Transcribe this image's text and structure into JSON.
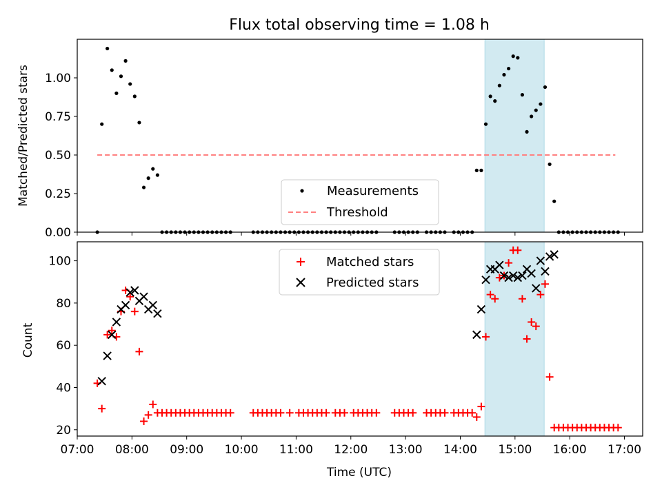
{
  "chart_data": [
    {
      "type": "scatter",
      "title": "Flux total observing time = 1.08 h",
      "xlabel": "",
      "ylabel": "Matched/Predicted stars",
      "xlim": [
        "07:00",
        "17:20"
      ],
      "ylim": [
        0,
        1.25
      ],
      "yticks": [
        "0.00",
        "0.25",
        "0.50",
        "0.75",
        "1.00"
      ],
      "xticks": [
        "07:00",
        "08:00",
        "09:00",
        "10:00",
        "11:00",
        "12:00",
        "13:00",
        "14:00",
        "15:00",
        "16:00",
        "17:00"
      ],
      "xtick_labels_visible": false,
      "shaded_span": {
        "x": [
          "14:27",
          "15:32"
        ],
        "color": "#add8e6"
      },
      "legend": {
        "placement": "lower center"
      },
      "series": [
        {
          "name": "Measurements",
          "kind": "scatter",
          "marker": "dot",
          "color": "#000000",
          "points": [
            [
              "07:22",
              0
            ],
            [
              "07:27",
              0.7
            ],
            [
              "07:33",
              1.19
            ],
            [
              "07:38",
              1.05
            ],
            [
              "07:43",
              0.9
            ],
            [
              "07:48",
              1.01
            ],
            [
              "07:53",
              1.11
            ],
            [
              "07:58",
              0.96
            ],
            [
              "08:03",
              0.88
            ],
            [
              "08:08",
              0.71
            ],
            [
              "08:13",
              0.29
            ],
            [
              "08:18",
              0.35
            ],
            [
              "08:23",
              0.41
            ],
            [
              "08:28",
              0.37
            ],
            [
              "08:33",
              0
            ],
            [
              "08:38",
              0
            ],
            [
              "08:43",
              0
            ],
            [
              "08:48",
              0
            ],
            [
              "08:53",
              0
            ],
            [
              "08:58",
              0
            ],
            [
              "09:03",
              0
            ],
            [
              "09:08",
              0
            ],
            [
              "09:13",
              0
            ],
            [
              "09:18",
              0
            ],
            [
              "09:23",
              0
            ],
            [
              "09:28",
              0
            ],
            [
              "09:33",
              0
            ],
            [
              "09:38",
              0
            ],
            [
              "09:43",
              0
            ],
            [
              "09:48",
              0
            ],
            [
              "10:13",
              0
            ],
            [
              "10:18",
              0
            ],
            [
              "10:23",
              0
            ],
            [
              "10:28",
              0
            ],
            [
              "10:33",
              0
            ],
            [
              "10:38",
              0
            ],
            [
              "10:43",
              0
            ],
            [
              "10:48",
              0
            ],
            [
              "10:53",
              0
            ],
            [
              "10:58",
              0
            ],
            [
              "11:03",
              0
            ],
            [
              "11:08",
              0
            ],
            [
              "11:13",
              0
            ],
            [
              "11:18",
              0
            ],
            [
              "11:23",
              0
            ],
            [
              "11:28",
              0
            ],
            [
              "11:33",
              0
            ],
            [
              "11:38",
              0
            ],
            [
              "11:43",
              0
            ],
            [
              "11:48",
              0
            ],
            [
              "11:53",
              0
            ],
            [
              "11:58",
              0
            ],
            [
              "12:03",
              0
            ],
            [
              "12:08",
              0
            ],
            [
              "12:13",
              0
            ],
            [
              "12:18",
              0
            ],
            [
              "12:23",
              0
            ],
            [
              "12:28",
              0
            ],
            [
              "12:48",
              0
            ],
            [
              "12:53",
              0
            ],
            [
              "12:58",
              0
            ],
            [
              "13:03",
              0
            ],
            [
              "13:08",
              0
            ],
            [
              "13:13",
              0
            ],
            [
              "13:23",
              0
            ],
            [
              "13:28",
              0
            ],
            [
              "13:33",
              0
            ],
            [
              "13:38",
              0
            ],
            [
              "13:43",
              0
            ],
            [
              "13:53",
              0
            ],
            [
              "13:58",
              0
            ],
            [
              "14:03",
              0
            ],
            [
              "14:08",
              0
            ],
            [
              "14:13",
              0
            ],
            [
              "14:18",
              0.4
            ],
            [
              "14:23",
              0.4
            ],
            [
              "14:28",
              0.7
            ],
            [
              "14:33",
              0.88
            ],
            [
              "14:38",
              0.85
            ],
            [
              "14:43",
              0.95
            ],
            [
              "14:48",
              1.02
            ],
            [
              "14:53",
              1.06
            ],
            [
              "14:58",
              1.14
            ],
            [
              "15:03",
              1.13
            ],
            [
              "15:08",
              0.89
            ],
            [
              "15:13",
              0.65
            ],
            [
              "15:18",
              0.75
            ],
            [
              "15:23",
              0.79
            ],
            [
              "15:28",
              0.83
            ],
            [
              "15:33",
              0.94
            ],
            [
              "15:38",
              0.44
            ],
            [
              "15:43",
              0.2
            ],
            [
              "15:48",
              0
            ],
            [
              "15:53",
              0
            ],
            [
              "15:58",
              0
            ],
            [
              "16:03",
              0
            ],
            [
              "16:08",
              0
            ],
            [
              "16:13",
              0
            ],
            [
              "16:18",
              0
            ],
            [
              "16:23",
              0
            ],
            [
              "16:28",
              0
            ],
            [
              "16:33",
              0
            ],
            [
              "16:38",
              0
            ],
            [
              "16:43",
              0
            ],
            [
              "16:48",
              0
            ],
            [
              "16:53",
              0
            ]
          ]
        },
        {
          "name": "Threshold",
          "kind": "line",
          "style": "dashed",
          "color": "#ff8080",
          "points": [
            [
              "07:22",
              0.5
            ],
            [
              "16:50",
              0.5
            ]
          ]
        }
      ]
    },
    {
      "type": "scatter",
      "title": "",
      "xlabel": "Time (UTC)",
      "ylabel": "Count",
      "xlim": [
        "07:00",
        "17:20"
      ],
      "ylim": [
        17,
        109
      ],
      "yticks": [
        "20",
        "40",
        "60",
        "80",
        "100"
      ],
      "xticks": [
        "07:00",
        "08:00",
        "09:00",
        "10:00",
        "11:00",
        "12:00",
        "13:00",
        "14:00",
        "15:00",
        "16:00",
        "17:00"
      ],
      "shaded_span": {
        "x": [
          "14:27",
          "15:32"
        ],
        "color": "#add8e6"
      },
      "legend": {
        "placement": "upper center"
      },
      "series": [
        {
          "name": "Matched stars",
          "kind": "scatter",
          "marker": "plus",
          "color": "#ff0000",
          "points": [
            [
              "07:22",
              42
            ],
            [
              "07:27",
              30
            ],
            [
              "07:33",
              65
            ],
            [
              "07:38",
              67
            ],
            [
              "07:43",
              64
            ],
            [
              "07:48",
              76
            ],
            [
              "07:53",
              86
            ],
            [
              "07:58",
              83
            ],
            [
              "08:03",
              76
            ],
            [
              "08:08",
              57
            ],
            [
              "08:13",
              24
            ],
            [
              "08:18",
              27
            ],
            [
              "08:23",
              32
            ],
            [
              "08:28",
              28
            ],
            [
              "08:33",
              28
            ],
            [
              "08:38",
              28
            ],
            [
              "08:43",
              28
            ],
            [
              "08:48",
              28
            ],
            [
              "08:53",
              28
            ],
            [
              "08:58",
              28
            ],
            [
              "09:03",
              28
            ],
            [
              "09:08",
              28
            ],
            [
              "09:13",
              28
            ],
            [
              "09:18",
              28
            ],
            [
              "09:23",
              28
            ],
            [
              "09:28",
              28
            ],
            [
              "09:33",
              28
            ],
            [
              "09:38",
              28
            ],
            [
              "09:43",
              28
            ],
            [
              "09:48",
              28
            ],
            [
              "10:13",
              28
            ],
            [
              "10:18",
              28
            ],
            [
              "10:23",
              28
            ],
            [
              "10:28",
              28
            ],
            [
              "10:33",
              28
            ],
            [
              "10:38",
              28
            ],
            [
              "10:43",
              28
            ],
            [
              "10:53",
              28
            ],
            [
              "11:03",
              28
            ],
            [
              "11:08",
              28
            ],
            [
              "11:13",
              28
            ],
            [
              "11:18",
              28
            ],
            [
              "11:23",
              28
            ],
            [
              "11:28",
              28
            ],
            [
              "11:33",
              28
            ],
            [
              "11:43",
              28
            ],
            [
              "11:48",
              28
            ],
            [
              "11:53",
              28
            ],
            [
              "12:03",
              28
            ],
            [
              "12:08",
              28
            ],
            [
              "12:13",
              28
            ],
            [
              "12:18",
              28
            ],
            [
              "12:23",
              28
            ],
            [
              "12:28",
              28
            ],
            [
              "12:48",
              28
            ],
            [
              "12:53",
              28
            ],
            [
              "12:58",
              28
            ],
            [
              "13:03",
              28
            ],
            [
              "13:08",
              28
            ],
            [
              "13:23",
              28
            ],
            [
              "13:28",
              28
            ],
            [
              "13:33",
              28
            ],
            [
              "13:38",
              28
            ],
            [
              "13:43",
              28
            ],
            [
              "13:53",
              28
            ],
            [
              "13:58",
              28
            ],
            [
              "14:03",
              28
            ],
            [
              "14:08",
              28
            ],
            [
              "14:13",
              28
            ],
            [
              "14:18",
              26
            ],
            [
              "14:23",
              31
            ],
            [
              "14:28",
              64
            ],
            [
              "14:33",
              84
            ],
            [
              "14:38",
              82
            ],
            [
              "14:43",
              92
            ],
            [
              "14:48",
              93
            ],
            [
              "14:53",
              99
            ],
            [
              "14:58",
              105
            ],
            [
              "15:03",
              105
            ],
            [
              "15:08",
              82
            ],
            [
              "15:13",
              63
            ],
            [
              "15:18",
              71
            ],
            [
              "15:23",
              69
            ],
            [
              "15:28",
              84
            ],
            [
              "15:33",
              89
            ],
            [
              "15:38",
              45
            ],
            [
              "15:43",
              21
            ],
            [
              "15:48",
              21
            ],
            [
              "15:53",
              21
            ],
            [
              "15:58",
              21
            ],
            [
              "16:03",
              21
            ],
            [
              "16:08",
              21
            ],
            [
              "16:13",
              21
            ],
            [
              "16:18",
              21
            ],
            [
              "16:23",
              21
            ],
            [
              "16:28",
              21
            ],
            [
              "16:33",
              21
            ],
            [
              "16:38",
              21
            ],
            [
              "16:43",
              21
            ],
            [
              "16:48",
              21
            ],
            [
              "16:53",
              21
            ]
          ]
        },
        {
          "name": "Predicted stars",
          "kind": "scatter",
          "marker": "cross",
          "color": "#000000",
          "points": [
            [
              "07:27",
              43
            ],
            [
              "07:33",
              55
            ],
            [
              "07:38",
              65
            ],
            [
              "07:43",
              71
            ],
            [
              "07:48",
              77
            ],
            [
              "07:53",
              79
            ],
            [
              "07:58",
              85
            ],
            [
              "08:03",
              86
            ],
            [
              "08:08",
              81
            ],
            [
              "08:13",
              83
            ],
            [
              "08:18",
              77
            ],
            [
              "08:23",
              79
            ],
            [
              "08:28",
              75
            ],
            [
              "14:18",
              65
            ],
            [
              "14:23",
              77
            ],
            [
              "14:28",
              91
            ],
            [
              "14:33",
              96
            ],
            [
              "14:38",
              96
            ],
            [
              "14:43",
              98
            ],
            [
              "14:48",
              93
            ],
            [
              "14:53",
              92
            ],
            [
              "14:58",
              93
            ],
            [
              "15:03",
              92
            ],
            [
              "15:08",
              93
            ],
            [
              "15:13",
              96
            ],
            [
              "15:18",
              94
            ],
            [
              "15:23",
              87
            ],
            [
              "15:28",
              100
            ],
            [
              "15:33",
              95
            ],
            [
              "15:38",
              102
            ],
            [
              "15:43",
              103
            ]
          ]
        }
      ]
    }
  ]
}
